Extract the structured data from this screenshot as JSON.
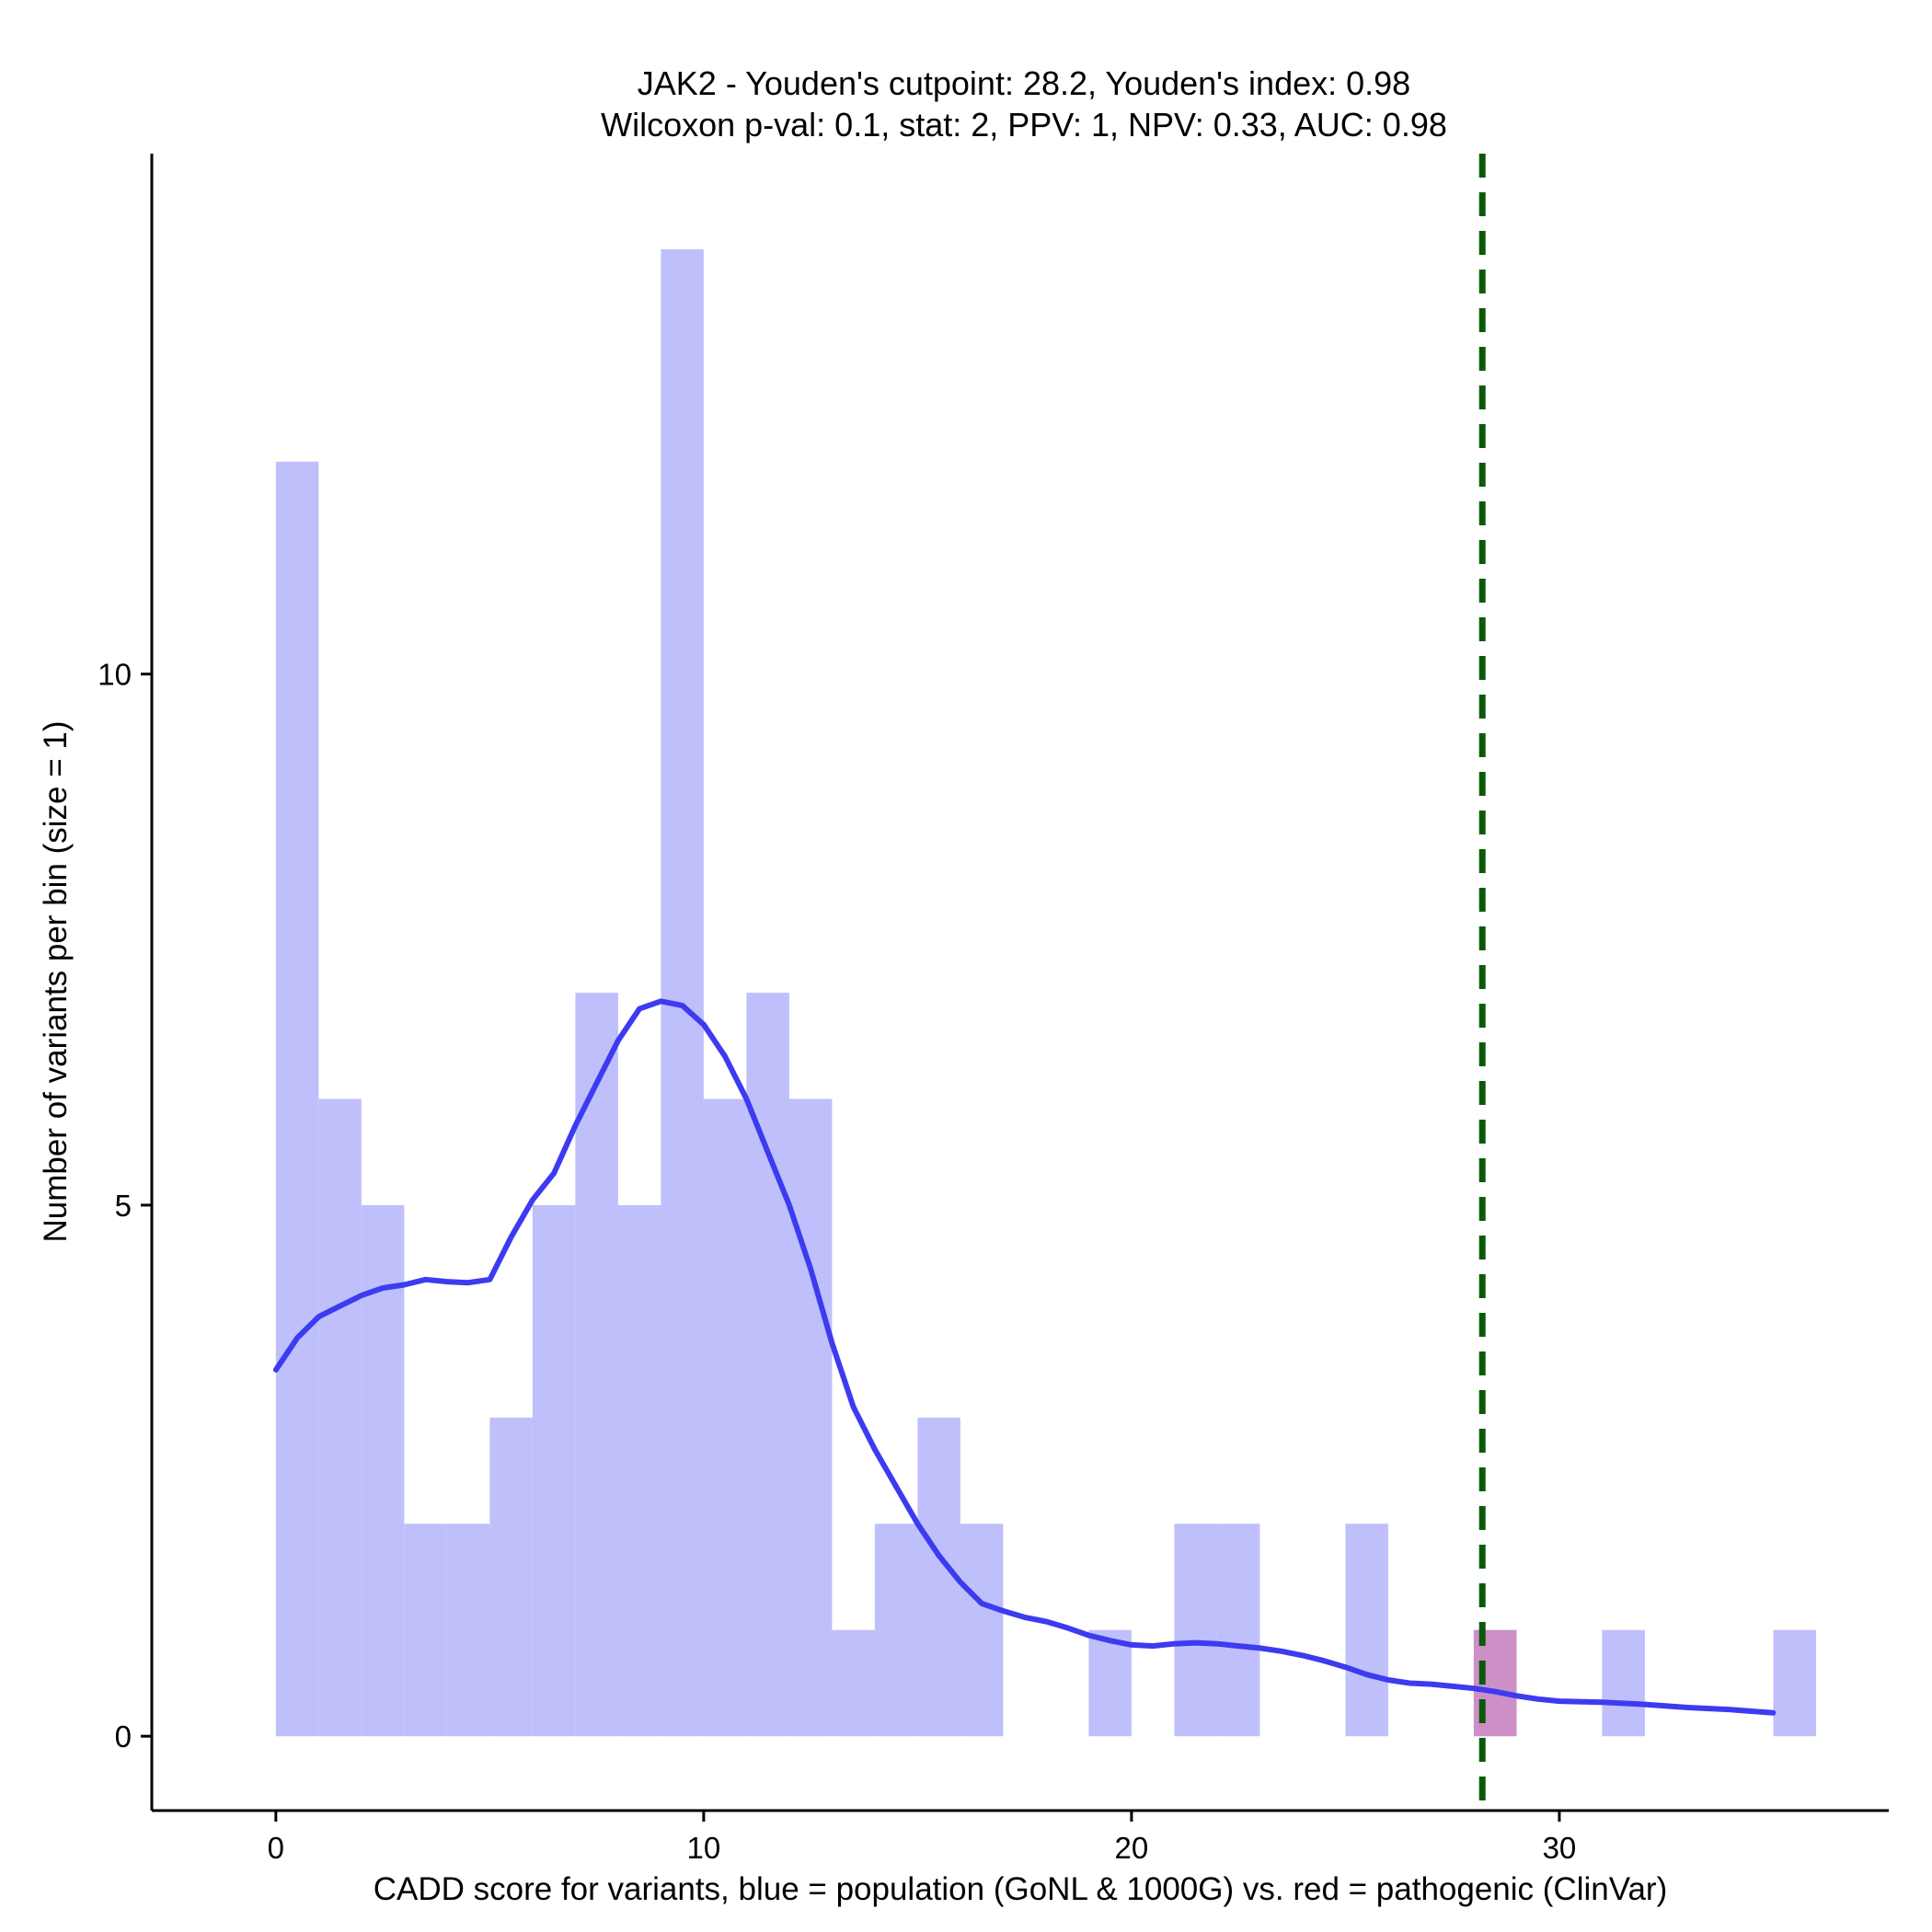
{
  "chart_data": {
    "type": "bar",
    "title": "JAK2 - Youden's cutpoint: 28.2, Youden's index: 0.98",
    "subtitle": "Wilcoxon p-val: 0.1, stat: 2, PPV: 1, NPV: 0.33, AUC: 0.98",
    "xlabel": "CADD score for variants, blue = population (GoNL & 1000G) vs. red = pathogenic (ClinVar)",
    "ylabel": "Number of variants per bin (size = 1)",
    "xlim": [
      -2.9,
      37.7
    ],
    "ylim": [
      -0.7,
      14.9
    ],
    "x_ticks": [
      0,
      10,
      20,
      30
    ],
    "y_ticks": [
      0,
      5,
      10
    ],
    "grid": false,
    "cutpoint": 28.2,
    "colors": {
      "population": "#bfbffb",
      "pathogenic": "#cc8fc7",
      "density": "#3d3bf0",
      "cutpoint": "#0a5a0a"
    },
    "population_bins": [
      {
        "x0": 0,
        "x1": 1,
        "count": 12
      },
      {
        "x0": 1,
        "x1": 2,
        "count": 6
      },
      {
        "x0": 2,
        "x1": 3,
        "count": 5
      },
      {
        "x0": 3,
        "x1": 4,
        "count": 2
      },
      {
        "x0": 4,
        "x1": 5,
        "count": 2
      },
      {
        "x0": 5,
        "x1": 6,
        "count": 3
      },
      {
        "x0": 6,
        "x1": 7,
        "count": 5
      },
      {
        "x0": 7,
        "x1": 8,
        "count": 7
      },
      {
        "x0": 8,
        "x1": 9,
        "count": 5
      },
      {
        "x0": 9,
        "x1": 10,
        "count": 14
      },
      {
        "x0": 10,
        "x1": 11,
        "count": 6
      },
      {
        "x0": 11,
        "x1": 12,
        "count": 7
      },
      {
        "x0": 12,
        "x1": 13,
        "count": 6
      },
      {
        "x0": 13,
        "x1": 14,
        "count": 1
      },
      {
        "x0": 14,
        "x1": 15,
        "count": 2
      },
      {
        "x0": 15,
        "x1": 16,
        "count": 3
      },
      {
        "x0": 16,
        "x1": 17,
        "count": 2
      },
      {
        "x0": 19,
        "x1": 20,
        "count": 1
      },
      {
        "x0": 21,
        "x1": 22,
        "count": 2
      },
      {
        "x0": 22,
        "x1": 23,
        "count": 2
      },
      {
        "x0": 25,
        "x1": 26,
        "count": 2
      },
      {
        "x0": 28,
        "x1": 29,
        "count": 1
      },
      {
        "x0": 31,
        "x1": 32,
        "count": 1
      },
      {
        "x0": 35,
        "x1": 36,
        "count": 1
      }
    ],
    "pathogenic_bins": [
      {
        "x0": 28,
        "x1": 29,
        "count": 1
      }
    ],
    "density_curve": {
      "x": [
        0,
        0.5,
        1,
        1.5,
        2,
        2.5,
        3,
        3.5,
        4,
        4.5,
        5,
        5.5,
        6,
        6.5,
        7,
        7.5,
        8,
        8.5,
        9,
        9.5,
        10,
        10.5,
        11,
        11.5,
        12,
        12.5,
        13,
        13.5,
        14,
        14.5,
        15,
        15.5,
        16,
        16.5,
        17,
        17.5,
        18,
        18.5,
        19,
        19.5,
        20,
        20.5,
        21,
        21.5,
        22,
        22.5,
        23,
        23.5,
        24,
        24.5,
        25,
        25.5,
        26,
        26.5,
        27,
        27.5,
        28,
        28.5,
        29,
        29.5,
        30,
        31,
        32,
        33,
        34,
        35
      ],
      "y": [
        3.45,
        3.75,
        3.95,
        4.05,
        4.15,
        4.22,
        4.25,
        4.3,
        4.28,
        4.27,
        4.3,
        4.7,
        5.05,
        5.3,
        5.75,
        6.15,
        6.55,
        6.85,
        6.92,
        6.88,
        6.7,
        6.4,
        6.0,
        5.5,
        5.0,
        4.4,
        3.7,
        3.1,
        2.7,
        2.35,
        2.0,
        1.7,
        1.45,
        1.25,
        1.18,
        1.12,
        1.08,
        1.02,
        0.95,
        0.9,
        0.86,
        0.85,
        0.87,
        0.88,
        0.87,
        0.85,
        0.83,
        0.8,
        0.76,
        0.71,
        0.65,
        0.58,
        0.53,
        0.5,
        0.49,
        0.47,
        0.45,
        0.42,
        0.38,
        0.35,
        0.33,
        0.32,
        0.3,
        0.27,
        0.25,
        0.22
      ]
    }
  }
}
